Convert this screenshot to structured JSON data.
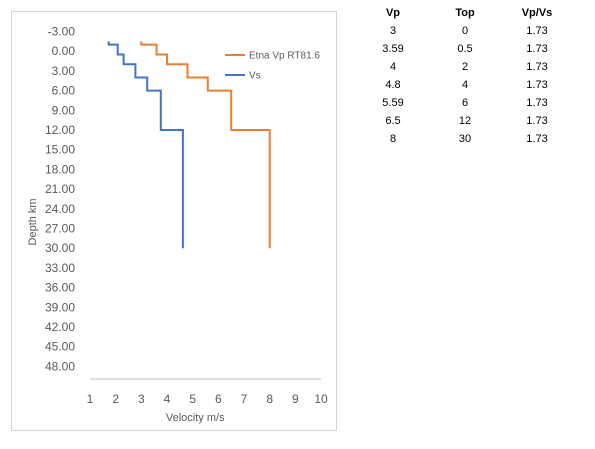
{
  "chart_data": {
    "type": "line",
    "title": "",
    "xlabel": "Velocity m/s",
    "ylabel": "Depth km",
    "xlim": [
      1,
      10
    ],
    "ylim": [
      -3,
      50
    ],
    "y_reversed": true,
    "grid": false,
    "legend_position": "top-right",
    "x_ticks": [
      "1",
      "2",
      "3",
      "4",
      "5",
      "6",
      "7",
      "8",
      "9",
      "10"
    ],
    "y_ticks": [
      "-3.00",
      "0.00",
      "3.00",
      "6.00",
      "9.00",
      "12.00",
      "15.00",
      "18.00",
      "21.00",
      "24.00",
      "27.00",
      "30.00",
      "33.00",
      "36.00",
      "39.00",
      "42.00",
      "45.00",
      "48.00"
    ],
    "series": [
      {
        "name": "Etna Vp RT81.6",
        "color": "#ED7D31",
        "points": [
          [
            3,
            -1.5
          ],
          [
            3,
            -1
          ],
          [
            3.59,
            -1
          ],
          [
            3.59,
            0.5
          ],
          [
            4,
            0.5
          ],
          [
            4,
            2
          ],
          [
            4.8,
            2
          ],
          [
            4.8,
            4
          ],
          [
            5.59,
            4
          ],
          [
            5.59,
            6
          ],
          [
            6.5,
            6
          ],
          [
            6.5,
            12
          ],
          [
            8,
            12
          ],
          [
            8,
            30
          ]
        ]
      },
      {
        "name": "Vs",
        "color": "#4472C4",
        "points": [
          [
            1.73,
            -1.5
          ],
          [
            1.73,
            -1
          ],
          [
            2.08,
            -1
          ],
          [
            2.08,
            0.5
          ],
          [
            2.31,
            0.5
          ],
          [
            2.31,
            2
          ],
          [
            2.77,
            2
          ],
          [
            2.77,
            4
          ],
          [
            3.23,
            4
          ],
          [
            3.23,
            6
          ],
          [
            3.76,
            6
          ],
          [
            3.76,
            12
          ],
          [
            4.62,
            12
          ],
          [
            4.62,
            30
          ]
        ]
      }
    ]
  },
  "table": {
    "headers": [
      "Vp",
      "Top",
      "Vp/Vs"
    ],
    "rows": [
      [
        "3",
        "0",
        "1.73"
      ],
      [
        "3.59",
        "0.5",
        "1.73"
      ],
      [
        "4",
        "2",
        "1.73"
      ],
      [
        "4.8",
        "4",
        "1.73"
      ],
      [
        "5.59",
        "6",
        "1.73"
      ],
      [
        "6.5",
        "12",
        "1.73"
      ],
      [
        "8",
        "30",
        "1.73"
      ]
    ]
  }
}
